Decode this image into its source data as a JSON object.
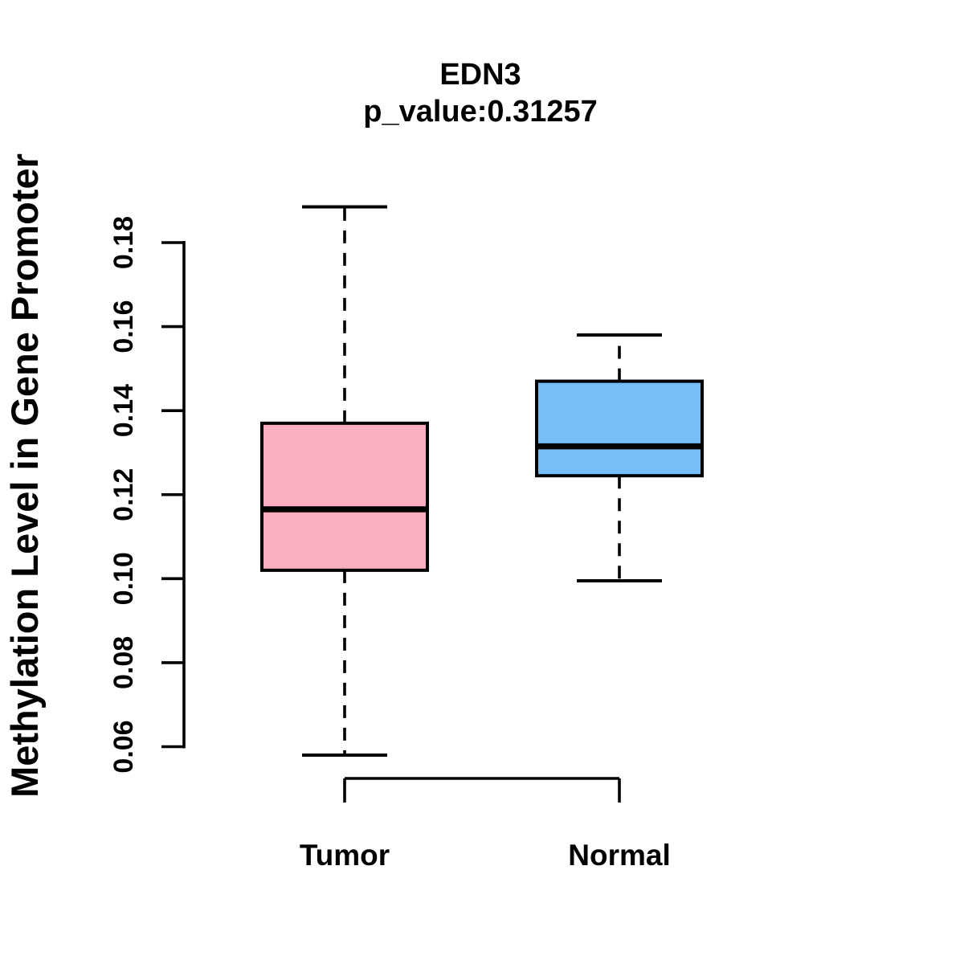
{
  "figure": {
    "background": "#FFFFFF",
    "text_color": "#000000"
  },
  "chart_data": {
    "type": "boxplot",
    "title": "EDN3",
    "subtitle": "p_value:0.31257",
    "p_value": "0.31257",
    "gene": "EDN3",
    "ylabel": "Methylation Level in Gene Promoter",
    "xlabel": "",
    "yticks": [
      "0.06",
      "0.08",
      "0.10",
      "0.12",
      "0.14",
      "0.16",
      "0.18"
    ],
    "ylim": [
      0.053,
      0.193
    ],
    "grid": false,
    "legend": "none",
    "categories": [
      "Tumor",
      "Normal"
    ],
    "groups": [
      {
        "label": "Tumor",
        "fill_color": "#FCAEC1",
        "border_color": "#000000",
        "whisker_low": 0.058,
        "q1": 0.102,
        "median": 0.1165,
        "q3": 0.137,
        "whisker_high": 0.1885,
        "outliers": []
      },
      {
        "label": "Normal",
        "fill_color": "#76BEF5",
        "border_color": "#000000",
        "whisker_low": 0.0995,
        "q1": 0.1245,
        "median": 0.1315,
        "q3": 0.147,
        "whisker_high": 0.158,
        "outliers": []
      }
    ]
  }
}
